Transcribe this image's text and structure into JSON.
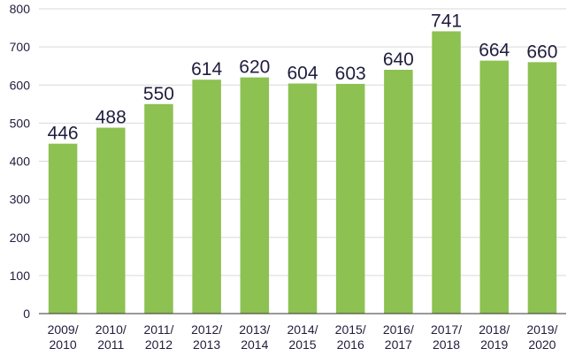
{
  "colors": {
    "bar": "#8dc152",
    "grid": "#d9d9d9",
    "axis": "#333333",
    "text": "#1f1d3d"
  },
  "chart_data": {
    "type": "bar",
    "categories": [
      [
        "2009/",
        "2010"
      ],
      [
        "2010/",
        "2011"
      ],
      [
        "2011/",
        "2012"
      ],
      [
        "2012/",
        "2013"
      ],
      [
        "2013/",
        "2014"
      ],
      [
        "2014/",
        "2015"
      ],
      [
        "2015/",
        "2016"
      ],
      [
        "2016/",
        "2017"
      ],
      [
        "2017/",
        "2018"
      ],
      [
        "2018/",
        "2019"
      ],
      [
        "2019/",
        "2020"
      ]
    ],
    "values": [
      446,
      488,
      550,
      614,
      620,
      604,
      603,
      640,
      741,
      664,
      660
    ],
    "data_labels": [
      "446",
      "488",
      "550",
      "614",
      "620",
      "604",
      "603",
      "640",
      "741",
      "664",
      "660"
    ],
    "yticks": [
      "0",
      "100",
      "200",
      "300",
      "400",
      "500",
      "600",
      "700",
      "800"
    ],
    "ylim": [
      0,
      800
    ],
    "grid": true,
    "title": "",
    "xlabel": "",
    "ylabel": ""
  }
}
